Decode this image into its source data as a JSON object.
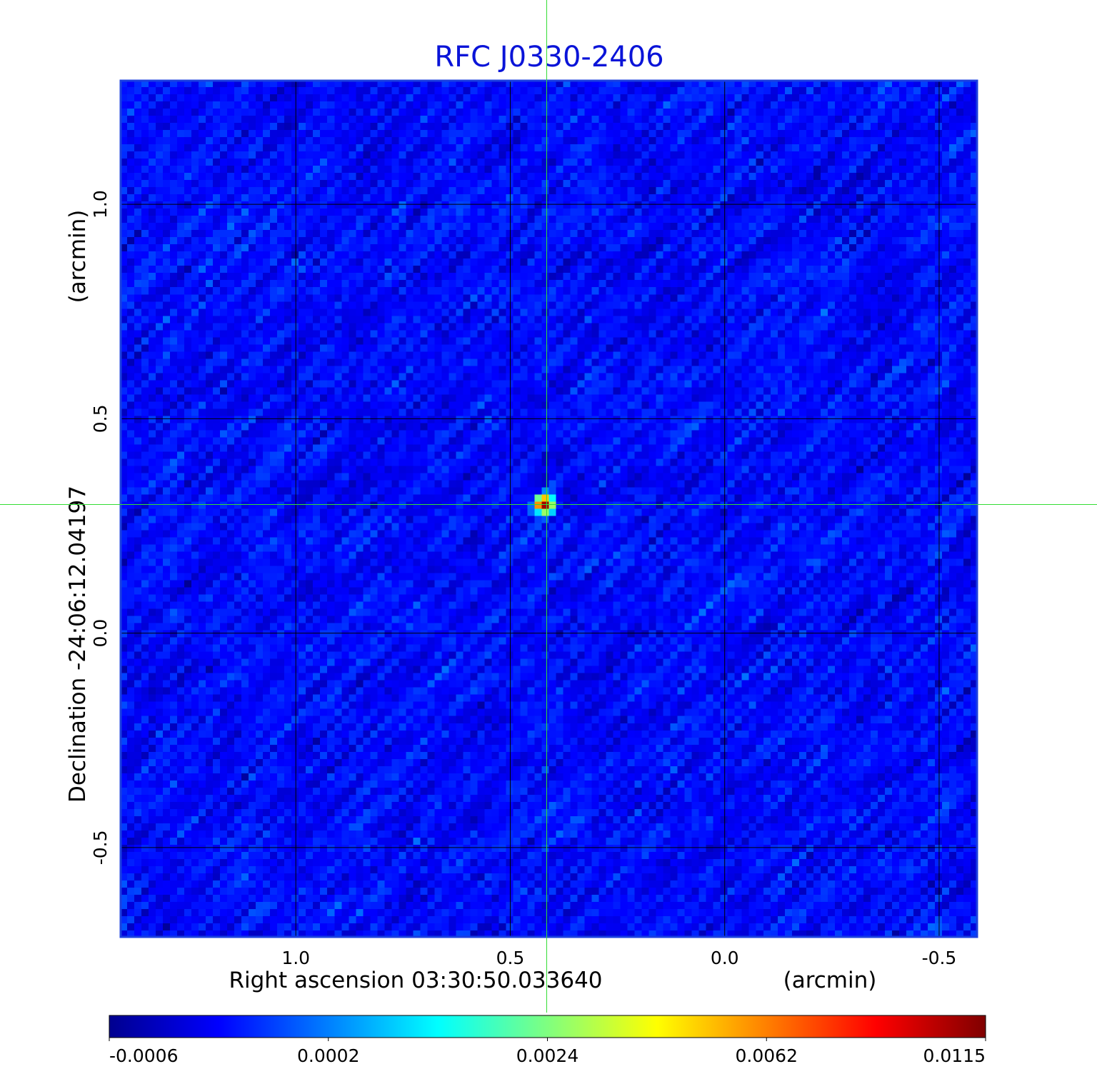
{
  "chart_data": {
    "type": "heatmap",
    "title": "RFC J0330-2406",
    "xlabel": "Right ascension  03:30:50.033640",
    "xunit": "(arcmin)",
    "ylabel": "Declination  -24:06:12.04197",
    "yunit": "(arcmin)",
    "x_ticks": [
      1.0,
      0.5,
      0.0,
      -0.5
    ],
    "x_tick_labels": [
      "1.0",
      "0.5",
      "0.0",
      "-0.5"
    ],
    "y_ticks": [
      1.0,
      0.5,
      0.0,
      -0.5
    ],
    "y_tick_labels": [
      "1.0",
      "0.5",
      "0.0",
      "-0.5"
    ],
    "xlim": [
      1.41,
      -0.59
    ],
    "ylim": [
      -0.71,
      1.29
    ],
    "grid": true,
    "colormap": "jet",
    "colorbar": {
      "position": "bottom",
      "tick_labels": [
        "-0.0006",
        "0.0002",
        "0.0024",
        "0.0062",
        "0.0115"
      ]
    },
    "source": {
      "x": 0.42,
      "y": 0.3,
      "peak": 0.0115
    },
    "crosshair": {
      "x": 0.415,
      "y": 0.3
    },
    "background_level": 0.0002
  },
  "colors": {
    "title": "#0a14d8",
    "frame": "#1a3fe0",
    "grid": "#000000",
    "crosshair": "#33dd33"
  }
}
